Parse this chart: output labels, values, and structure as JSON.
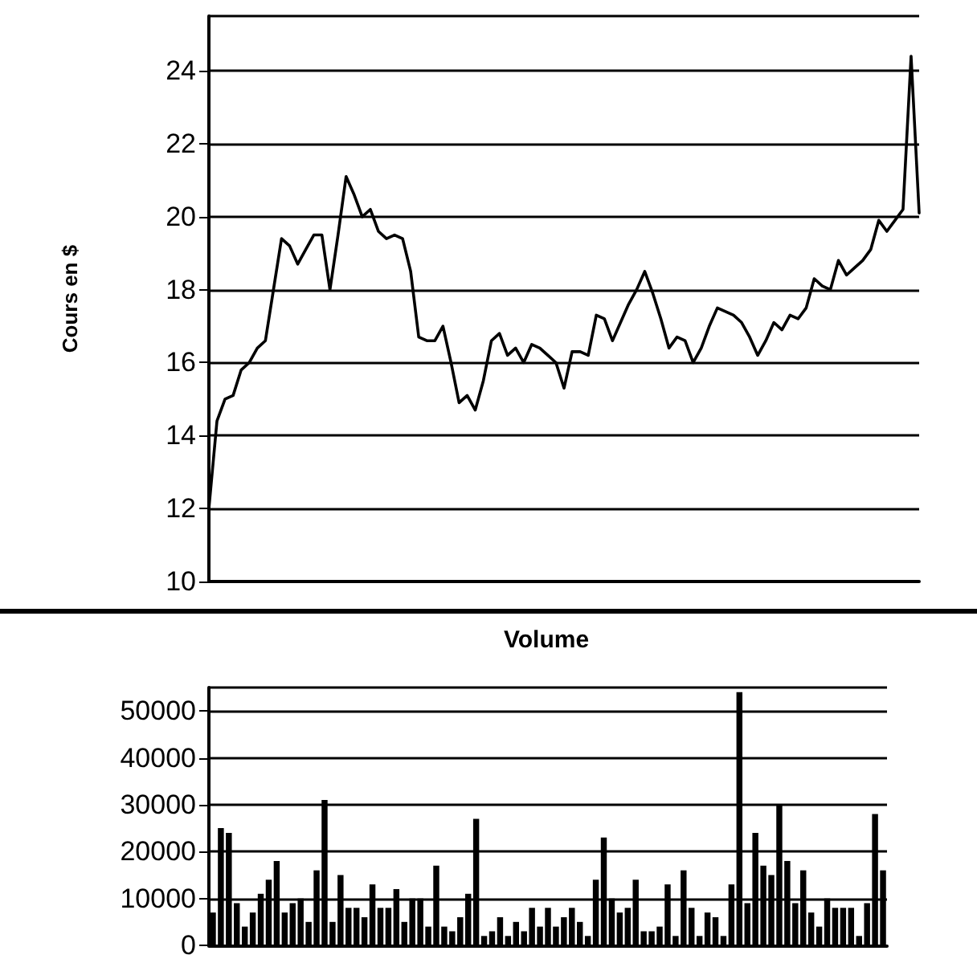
{
  "chart_data": [
    {
      "type": "line",
      "ylabel": "Cours en $",
      "categories": [
        null,
        null,
        null,
        null,
        null,
        null,
        null,
        null,
        null,
        null,
        null,
        null,
        null,
        null,
        null,
        null,
        null,
        null,
        null,
        null,
        null,
        null,
        null,
        null,
        null,
        null,
        null,
        null,
        null,
        null,
        null,
        null,
        null,
        null,
        null,
        null,
        null,
        null,
        null,
        null,
        null,
        null,
        null,
        null,
        null,
        null,
        null,
        null,
        null,
        null,
        null,
        null,
        null,
        null,
        null,
        null,
        null,
        null,
        null,
        null,
        null,
        null,
        null,
        null,
        null,
        null,
        null,
        null,
        null,
        null,
        null,
        null,
        null,
        null,
        null,
        null,
        null,
        null,
        null,
        null,
        null,
        null,
        null,
        null,
        null,
        null,
        null,
        null,
        null
      ],
      "series": [
        {
          "color": "#000000",
          "values": [
            12.0,
            14.4,
            15.0,
            15.1,
            15.8,
            16.0,
            16.4,
            16.6,
            18.0,
            19.4,
            19.2,
            18.7,
            19.1,
            19.5,
            19.5,
            18.0,
            19.5,
            21.1,
            20.6,
            20.0,
            20.2,
            19.6,
            19.4,
            19.5,
            19.4,
            18.5,
            16.7,
            16.6,
            16.6,
            17.0,
            16.0,
            14.9,
            15.1,
            14.7,
            15.5,
            16.6,
            16.8,
            16.2,
            16.4,
            16.0,
            16.5,
            16.4,
            16.2,
            16.0,
            15.3,
            16.3,
            16.3,
            16.2,
            17.3,
            17.2,
            16.6,
            17.1,
            17.6,
            18.0,
            18.5,
            17.9,
            17.2,
            16.4,
            16.7,
            16.6,
            16.0,
            16.4,
            17.0,
            17.5,
            17.4,
            17.3,
            17.1,
            16.7,
            16.2,
            16.6,
            17.1,
            16.9,
            17.3,
            17.2,
            17.5,
            18.3,
            18.1,
            18.0,
            18.8,
            18.4,
            18.6,
            18.8,
            19.1,
            19.9,
            19.6,
            19.9,
            20.2,
            24.4,
            20.1
          ]
        }
      ],
      "ylim": [
        10,
        25.5
      ],
      "yticks": [
        10,
        12,
        14,
        16,
        18,
        20,
        22,
        24
      ],
      "grid": "y",
      "line_style": "solid",
      "tick_labels": "y"
    },
    {
      "type": "bar",
      "title": "Volume",
      "categories": [
        null,
        null,
        null,
        null,
        null,
        null,
        null,
        null,
        null,
        null,
        null,
        null,
        null,
        null,
        null,
        null,
        null,
        null,
        null,
        null,
        null,
        null,
        null,
        null,
        null,
        null,
        null,
        null,
        null,
        null,
        null,
        null,
        null,
        null,
        null,
        null,
        null,
        null,
        null,
        null,
        null,
        null,
        null,
        null,
        null,
        null,
        null,
        null,
        null,
        null,
        null,
        null,
        null,
        null,
        null,
        null,
        null,
        null,
        null,
        null,
        null,
        null,
        null,
        null,
        null,
        null,
        null,
        null,
        null,
        null,
        null,
        null,
        null,
        null,
        null,
        null,
        null,
        null,
        null,
        null,
        null,
        null,
        null,
        null,
        null
      ],
      "series": [
        {
          "color": "#000000",
          "values": [
            7000,
            25000,
            24000,
            9000,
            4000,
            7000,
            11000,
            14000,
            18000,
            7000,
            9000,
            10000,
            5000,
            16000,
            31000,
            5000,
            15000,
            8000,
            8000,
            6000,
            13000,
            8000,
            8000,
            12000,
            5000,
            10000,
            10000,
            4000,
            17000,
            4000,
            3000,
            6000,
            11000,
            27000,
            2000,
            3000,
            6000,
            2000,
            5000,
            3000,
            8000,
            4000,
            8000,
            4000,
            6000,
            8000,
            5000,
            2000,
            14000,
            23000,
            10000,
            7000,
            8000,
            14000,
            3000,
            3000,
            4000,
            13000,
            2000,
            16000,
            8000,
            2000,
            7000,
            6000,
            2000,
            13000,
            54000,
            9000,
            24000,
            17000,
            15000,
            30000,
            18000,
            9000,
            16000,
            7000,
            4000,
            10000,
            8000,
            8000,
            8000,
            2000,
            9000,
            28000,
            16000
          ]
        }
      ],
      "ylim": [
        0,
        55000
      ],
      "yticks": [
        0,
        10000,
        20000,
        30000,
        40000,
        50000
      ],
      "grid": "y",
      "tick_labels": "y"
    }
  ]
}
